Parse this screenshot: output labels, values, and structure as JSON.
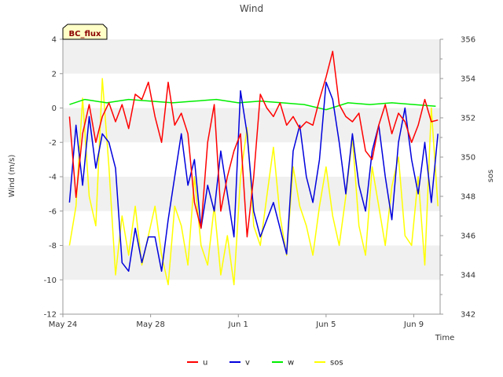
{
  "chart_data": {
    "type": "line",
    "title": "Wind",
    "badge": "BC_flux",
    "xlabel": "Time",
    "ylabel": "Wind (m/s)",
    "y2label": "sos",
    "xlim": [
      0,
      17.2
    ],
    "ylim": [
      -12,
      4
    ],
    "y2lim": [
      342,
      356
    ],
    "x_ticks": [
      {
        "label": "May 24",
        "value": 0
      },
      {
        "label": "May 28",
        "value": 4
      },
      {
        "label": "Jun 1",
        "value": 8
      },
      {
        "label": "Jun 5",
        "value": 12
      },
      {
        "label": "Jun 9",
        "value": 16
      }
    ],
    "y_ticks": [
      4,
      2,
      0,
      -2,
      -4,
      -6,
      -8,
      -10,
      -12
    ],
    "y2_ticks": [
      356,
      354,
      352,
      350,
      348,
      346,
      344,
      342
    ],
    "bands": [
      [
        2,
        4
      ],
      [
        -2,
        0
      ],
      [
        -6,
        -4
      ],
      [
        -10,
        -8
      ]
    ],
    "grid": false,
    "legend_position": "bottom",
    "series": [
      {
        "name": "u",
        "color": "#ff0000",
        "axis": "left",
        "x": [
          0.3,
          0.6,
          0.9,
          1.2,
          1.5,
          1.8,
          2.1,
          2.4,
          2.7,
          3.0,
          3.3,
          3.6,
          3.9,
          4.2,
          4.5,
          4.8,
          5.1,
          5.4,
          5.7,
          6.0,
          6.3,
          6.6,
          6.9,
          7.2,
          7.5,
          7.8,
          8.1,
          8.4,
          8.7,
          9.0,
          9.3,
          9.6,
          9.9,
          10.2,
          10.5,
          10.8,
          11.1,
          11.4,
          11.7,
          12.0,
          12.3,
          12.6,
          12.9,
          13.2,
          13.5,
          13.8,
          14.1,
          14.4,
          14.7,
          15.0,
          15.3,
          15.6,
          15.9,
          16.2,
          16.5,
          16.8,
          17.1
        ],
        "values": [
          -0.5,
          -5.2,
          -1.5,
          0.2,
          -2.0,
          -0.5,
          0.3,
          -0.8,
          0.2,
          -1.2,
          0.8,
          0.5,
          1.5,
          -0.5,
          -2.0,
          1.5,
          -1.0,
          -0.3,
          -1.5,
          -5.5,
          -7.0,
          -2.0,
          0.2,
          -6.0,
          -4.0,
          -2.5,
          -1.5,
          -7.5,
          -4.0,
          0.8,
          0.0,
          -0.5,
          0.3,
          -1.0,
          -0.5,
          -1.2,
          -0.8,
          -1.0,
          0.5,
          1.8,
          3.3,
          0.2,
          -0.5,
          -0.8,
          -0.3,
          -2.5,
          -3.0,
          -1.0,
          0.2,
          -1.5,
          -0.3,
          -0.8,
          -2.0,
          -1.0,
          0.5,
          -0.8,
          -0.7
        ]
      },
      {
        "name": "v",
        "color": "#0000dd",
        "axis": "left",
        "x": [
          0.3,
          0.6,
          0.9,
          1.2,
          1.5,
          1.8,
          2.1,
          2.4,
          2.7,
          3.0,
          3.3,
          3.6,
          3.9,
          4.2,
          4.5,
          4.8,
          5.1,
          5.4,
          5.7,
          6.0,
          6.3,
          6.6,
          6.9,
          7.2,
          7.5,
          7.8,
          8.1,
          8.4,
          8.7,
          9.0,
          9.3,
          9.6,
          9.9,
          10.2,
          10.5,
          10.8,
          11.1,
          11.4,
          11.7,
          12.0,
          12.3,
          12.6,
          12.9,
          13.2,
          13.5,
          13.8,
          14.1,
          14.4,
          14.7,
          15.0,
          15.3,
          15.6,
          15.9,
          16.2,
          16.5,
          16.8,
          17.1
        ],
        "values": [
          -5.5,
          -1.0,
          -4.5,
          -0.5,
          -3.5,
          -1.5,
          -2.0,
          -3.5,
          -9.0,
          -9.5,
          -7.0,
          -9.0,
          -7.5,
          -7.5,
          -9.5,
          -6.5,
          -4.0,
          -1.5,
          -4.5,
          -3.0,
          -7.0,
          -4.5,
          -6.0,
          -2.5,
          -5.0,
          -7.5,
          1.0,
          -1.5,
          -6.0,
          -7.5,
          -6.5,
          -5.5,
          -7.0,
          -8.5,
          -2.5,
          -1.0,
          -4.0,
          -5.5,
          -3.0,
          1.5,
          0.5,
          -2.0,
          -5.0,
          -1.5,
          -4.5,
          -6.0,
          -2.5,
          -1.0,
          -4.0,
          -6.5,
          -2.0,
          0.0,
          -3.0,
          -5.0,
          -2.0,
          -5.5,
          -1.5
        ]
      },
      {
        "name": "w",
        "color": "#00ee00",
        "axis": "left",
        "x": [
          0.3,
          1.0,
          2.0,
          3.0,
          4.0,
          5.0,
          6.0,
          7.0,
          8.0,
          9.0,
          10.0,
          11.0,
          12.0,
          13.0,
          14.0,
          15.0,
          16.0,
          17.0
        ],
        "values": [
          0.2,
          0.5,
          0.3,
          0.5,
          0.4,
          0.3,
          0.4,
          0.5,
          0.3,
          0.4,
          0.3,
          0.2,
          -0.1,
          0.3,
          0.2,
          0.3,
          0.2,
          0.1
        ]
      },
      {
        "name": "sos",
        "color": "#ffff00",
        "axis": "right",
        "x": [
          0.3,
          0.6,
          0.9,
          1.2,
          1.5,
          1.8,
          2.1,
          2.4,
          2.7,
          3.0,
          3.3,
          3.6,
          3.9,
          4.2,
          4.5,
          4.8,
          5.1,
          5.4,
          5.7,
          6.0,
          6.3,
          6.6,
          6.9,
          7.2,
          7.5,
          7.8,
          8.1,
          8.4,
          8.7,
          9.0,
          9.3,
          9.6,
          9.9,
          10.2,
          10.5,
          10.8,
          11.1,
          11.4,
          11.7,
          12.0,
          12.3,
          12.6,
          12.9,
          13.2,
          13.5,
          13.8,
          14.1,
          14.4,
          14.7,
          15.0,
          15.3,
          15.6,
          15.9,
          16.2,
          16.5,
          16.8,
          17.1
        ],
        "values": [
          345.5,
          347.5,
          353.0,
          348.0,
          346.5,
          354.0,
          349.5,
          344.0,
          347.0,
          345.0,
          347.5,
          344.5,
          346.0,
          347.5,
          345.0,
          343.5,
          347.5,
          346.5,
          344.5,
          349.0,
          345.5,
          344.5,
          347.5,
          344.0,
          346.0,
          343.5,
          349.0,
          351.5,
          346.5,
          345.5,
          348.0,
          350.5,
          347.0,
          345.0,
          349.5,
          347.5,
          346.5,
          345.0,
          347.5,
          349.5,
          347.0,
          345.5,
          348.0,
          351.0,
          346.5,
          345.0,
          349.5,
          347.5,
          345.5,
          348.5,
          350.0,
          346.0,
          345.5,
          349.0,
          344.5,
          352.5,
          347.5
        ]
      }
    ]
  }
}
